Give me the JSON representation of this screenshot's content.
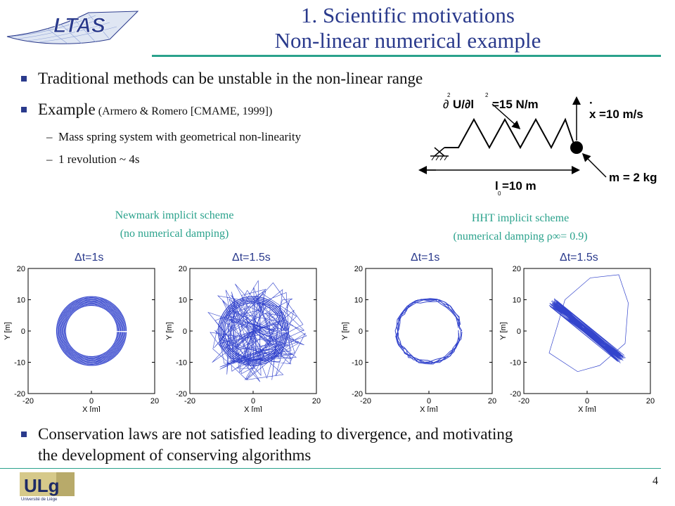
{
  "header": {
    "logo_text": "LTAS",
    "title_line1": "1. Scientific motivations",
    "title_line2": "Non-linear numerical example"
  },
  "bullets": {
    "b1": "Traditional methods can be unstable in the non-linear range",
    "b2_main": "Example",
    "b2_ref": " (Armero & Romero [CMAME, 1999])",
    "sub1": "Mass spring system with geometrical non-linearity",
    "sub2": "1 revolution ~ 4s",
    "b3_line1": "Conservation laws are not satisfied leading to divergence, and motivating",
    "b3_line2": "the development of conserving algorithms"
  },
  "diagram": {
    "stiffness_label": "=15 N/m",
    "velocity_label": "=10 m/s",
    "mass_label": "m = 2 kg",
    "length_label": "=10 m"
  },
  "captions": {
    "newmark_line1": "Newmark implicit scheme",
    "newmark_line2": "(no numerical damping)",
    "hht_line1": "HHT implicit scheme",
    "hht_line2": "(numerical damping ρ∞= 0.9)",
    "dt1": "Δt=1s",
    "dt2": "Δt=1.5s"
  },
  "plot_common": {
    "xlabel": "X [m]",
    "ylabel": "Y [m]",
    "ticks": [
      "-20",
      "-10",
      "0",
      "10",
      "20"
    ],
    "xticks": [
      "-20",
      "0",
      "20"
    ],
    "line_color": "#3344cc"
  },
  "footer": {
    "logo_text": "ULg",
    "logo_sub": "Université de Liège",
    "page": "4"
  }
}
